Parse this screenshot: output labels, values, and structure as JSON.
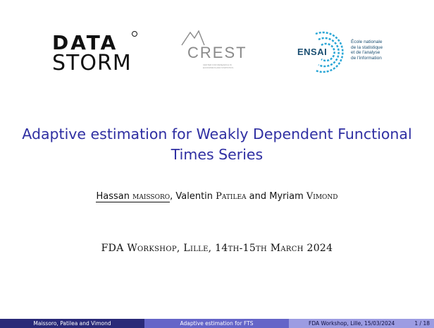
{
  "logos": {
    "datastorm": {
      "line1": "DATA",
      "line2": "STORM"
    },
    "crest": {
      "word": "CREST",
      "subtitle": "CENTER FOR RESEARCH IN ECONOMICS AND STATISTICS"
    },
    "ensai": {
      "word": "ENSAI",
      "text": "École nationale\nde la statistique\net de l'analyse\nde l'information"
    }
  },
  "title": "Adaptive estimation for Weakly Dependent Functional Times Series",
  "authors": {
    "first_given": "Hassan",
    "first_family": "maissoro",
    "separator1": ", Valentin ",
    "second_family": "Patilea",
    "separator2": " and Myriam ",
    "third_family": "Vimond"
  },
  "event": "FDA Workshop, Lille, 14th-15th March 2024",
  "footer": {
    "authors": "Maissoro, Patilea and Vimond",
    "short_title": "Adaptive estimation for FTS",
    "event": "FDA Workshop, Lille, 15/03/2024",
    "page": "1 / 18"
  },
  "colors": {
    "title": "#2f2fa2",
    "footer_dark": "#2a2a78",
    "footer_mid": "#6565c8",
    "footer_light": "#9c9ce2",
    "ensai": "#1b4f72"
  }
}
